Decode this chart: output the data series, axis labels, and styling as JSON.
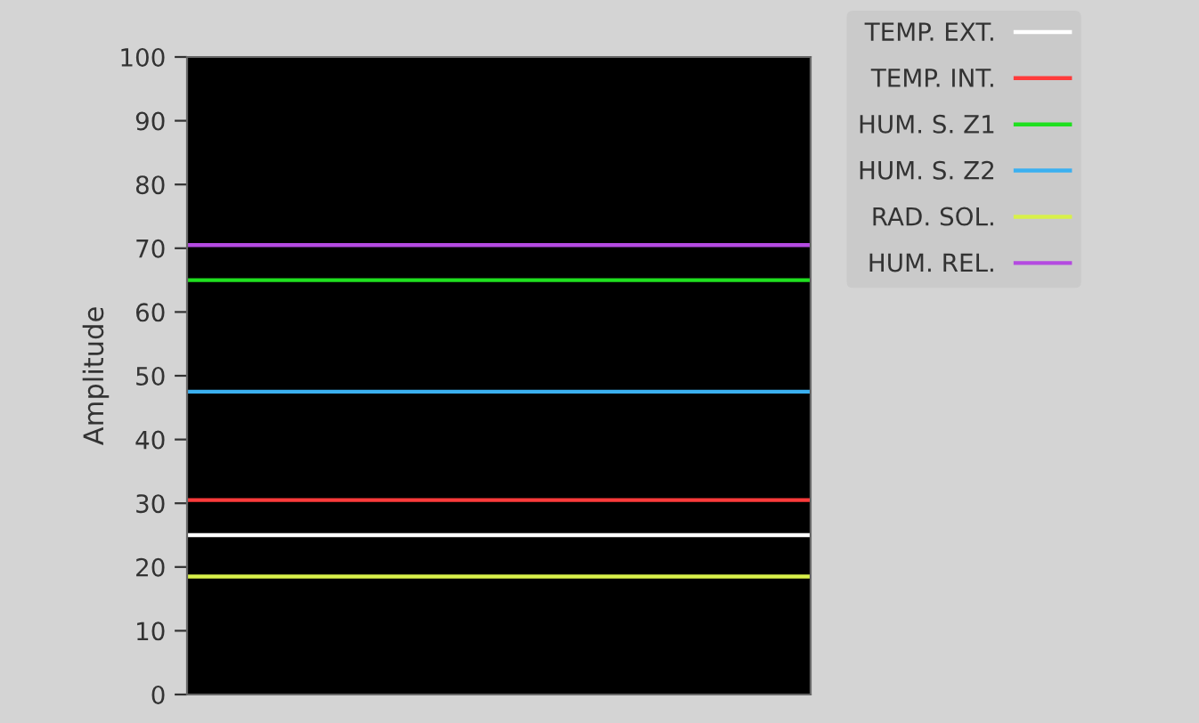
{
  "chart_data": {
    "type": "line",
    "ylabel": "Amplitude",
    "ylim": [
      0,
      100
    ],
    "yticks": [
      0,
      10,
      20,
      30,
      40,
      50,
      60,
      70,
      80,
      90,
      100
    ],
    "categories": [
      null,
      null,
      null,
      null,
      null,
      null,
      null,
      null,
      null,
      null,
      null,
      null
    ],
    "series": [
      {
        "name": "TEMP. EXT.",
        "color": "#ffffff",
        "values": [
          25,
          25,
          25,
          25,
          25,
          25,
          25,
          25,
          25,
          25,
          25,
          25
        ]
      },
      {
        "name": "TEMP. INT.",
        "color": "#ff3b3b",
        "values": [
          30.5,
          30.5,
          30.5,
          30.5,
          30.5,
          30.5,
          30.5,
          30.5,
          30.5,
          30.5,
          30.5,
          30.5
        ]
      },
      {
        "name": "HUM. S. Z1",
        "color": "#1fe01f",
        "values": [
          65,
          65,
          65,
          65,
          65,
          65,
          65,
          65,
          65,
          65,
          65,
          65
        ]
      },
      {
        "name": "HUM. S. Z2",
        "color": "#3bb0f0",
        "values": [
          47.5,
          47.5,
          47.5,
          47.5,
          47.5,
          47.5,
          47.5,
          47.5,
          47.5,
          47.5,
          47.5,
          47.5
        ]
      },
      {
        "name": "RAD. SOL.",
        "color": "#d8f04a",
        "values": [
          18.5,
          18.5,
          18.5,
          18.5,
          18.5,
          18.5,
          18.5,
          18.5,
          18.5,
          18.5,
          18.5,
          18.5
        ]
      },
      {
        "name": "HUM. REL.",
        "color": "#b44ae0",
        "values": [
          70.5,
          70.5,
          70.5,
          70.5,
          70.5,
          70.5,
          70.5,
          70.5,
          70.5,
          70.5,
          70.5,
          70.5
        ]
      }
    ],
    "grid": false,
    "legend": "top right"
  }
}
